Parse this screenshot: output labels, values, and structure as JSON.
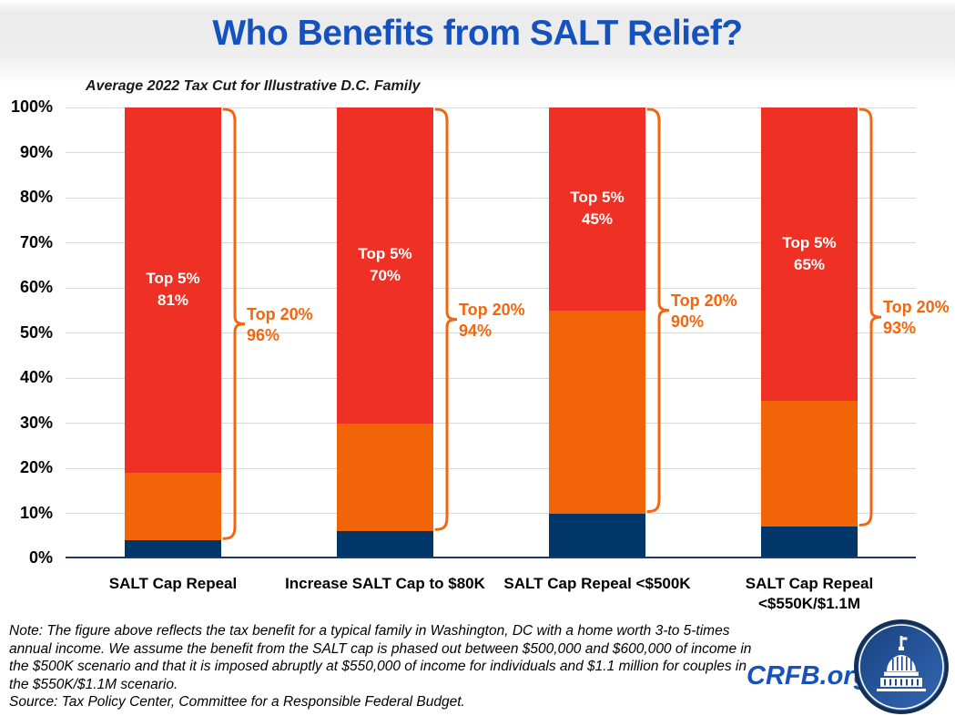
{
  "page": {
    "title": "Who Benefits from SALT Relief?",
    "note": "Note: The figure above reflects the tax benefit for a typical family in Washington, DC with a home worth 3-to 5-times annual income. We assume the benefit from the SALT cap is phased out between $500,000 and $600,000 of income in the $500K scenario and that it is imposed abruptly at $550,000 of income for individuals and $1.1 million for couples in the $550K/$1.1M scenario.",
    "source": "Source: Tax Policy Center, Committee for a Responsible Federal Budget.",
    "brand": "CRFB.org"
  },
  "chart_data": {
    "type": "bar",
    "stacked": true,
    "title": "Who Benefits from SALT Relief?",
    "subtitle": "Average 2022 Tax Cut for Illustrative D.C. Family",
    "xlabel": "",
    "ylabel": "",
    "ylim": [
      0,
      100
    ],
    "ytick_step": 10,
    "ytick_labels": [
      "0%",
      "10%",
      "20%",
      "30%",
      "40%",
      "50%",
      "60%",
      "70%",
      "80%",
      "90%",
      "100%"
    ],
    "grid": "horizontal",
    "legend": "none",
    "categories": [
      "SALT Cap Repeal",
      "Increase SALT Cap to $80K",
      "SALT Cap Repeal <$500K",
      "SALT Cap Repeal <$550K/$1.1M"
    ],
    "series": [
      {
        "name": "navy-bottom-segment",
        "color": "#003768",
        "values": [
          4,
          6,
          10,
          7
        ]
      },
      {
        "name": "orange-middle-segment",
        "color": "#F26408",
        "values": [
          15,
          24,
          45,
          28
        ]
      },
      {
        "name": "red-top-segment",
        "color": "#EE3124",
        "values": [
          81,
          70,
          45,
          65
        ]
      }
    ],
    "bar_value_labels": [
      {
        "text": "Top 5%",
        "value": "81%"
      },
      {
        "text": "Top 5%",
        "value": "70%"
      },
      {
        "text": "Top 5%",
        "value": "45%"
      },
      {
        "text": "Top 5%",
        "value": "65%"
      }
    ],
    "bracket_annotations": [
      {
        "text": "Top 20%",
        "value": "96%",
        "covers_pct": 96
      },
      {
        "text": "Top 20%",
        "value": "94%",
        "covers_pct": 94
      },
      {
        "text": "Top 20%",
        "value": "90%",
        "covers_pct": 90
      },
      {
        "text": "Top 20%",
        "value": "93%",
        "covers_pct": 93
      }
    ],
    "colors": {
      "red": "#EE3124",
      "orange": "#F26408",
      "navy": "#003768",
      "bracket": "#F4650C",
      "title_blue": "#1652BE",
      "axis": "#1F3864",
      "grid": "#D9D9D9"
    }
  }
}
